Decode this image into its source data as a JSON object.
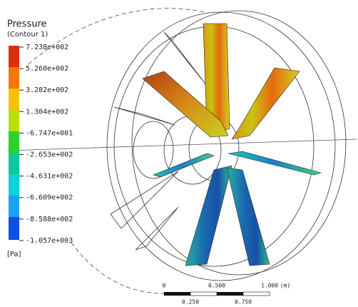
{
  "legend": {
    "title": "Pressure",
    "subtitle": "(Contour 1)",
    "labels": [
      "7.238e+002",
      "5.260e+002",
      "3.282e+002",
      "1.304e+002",
      "-6.747e+001",
      "-2.653e+002",
      "-4.631e+002",
      "-6.609e+002",
      "-8.588e+002",
      "-1.057e+003"
    ],
    "unit": "[Pa]"
  },
  "scale_bar": {
    "top_labels": [
      "0",
      "0.500",
      "1.000"
    ],
    "unit": "(m)",
    "bottom_labels": [
      "0.250",
      "0.750"
    ]
  }
}
